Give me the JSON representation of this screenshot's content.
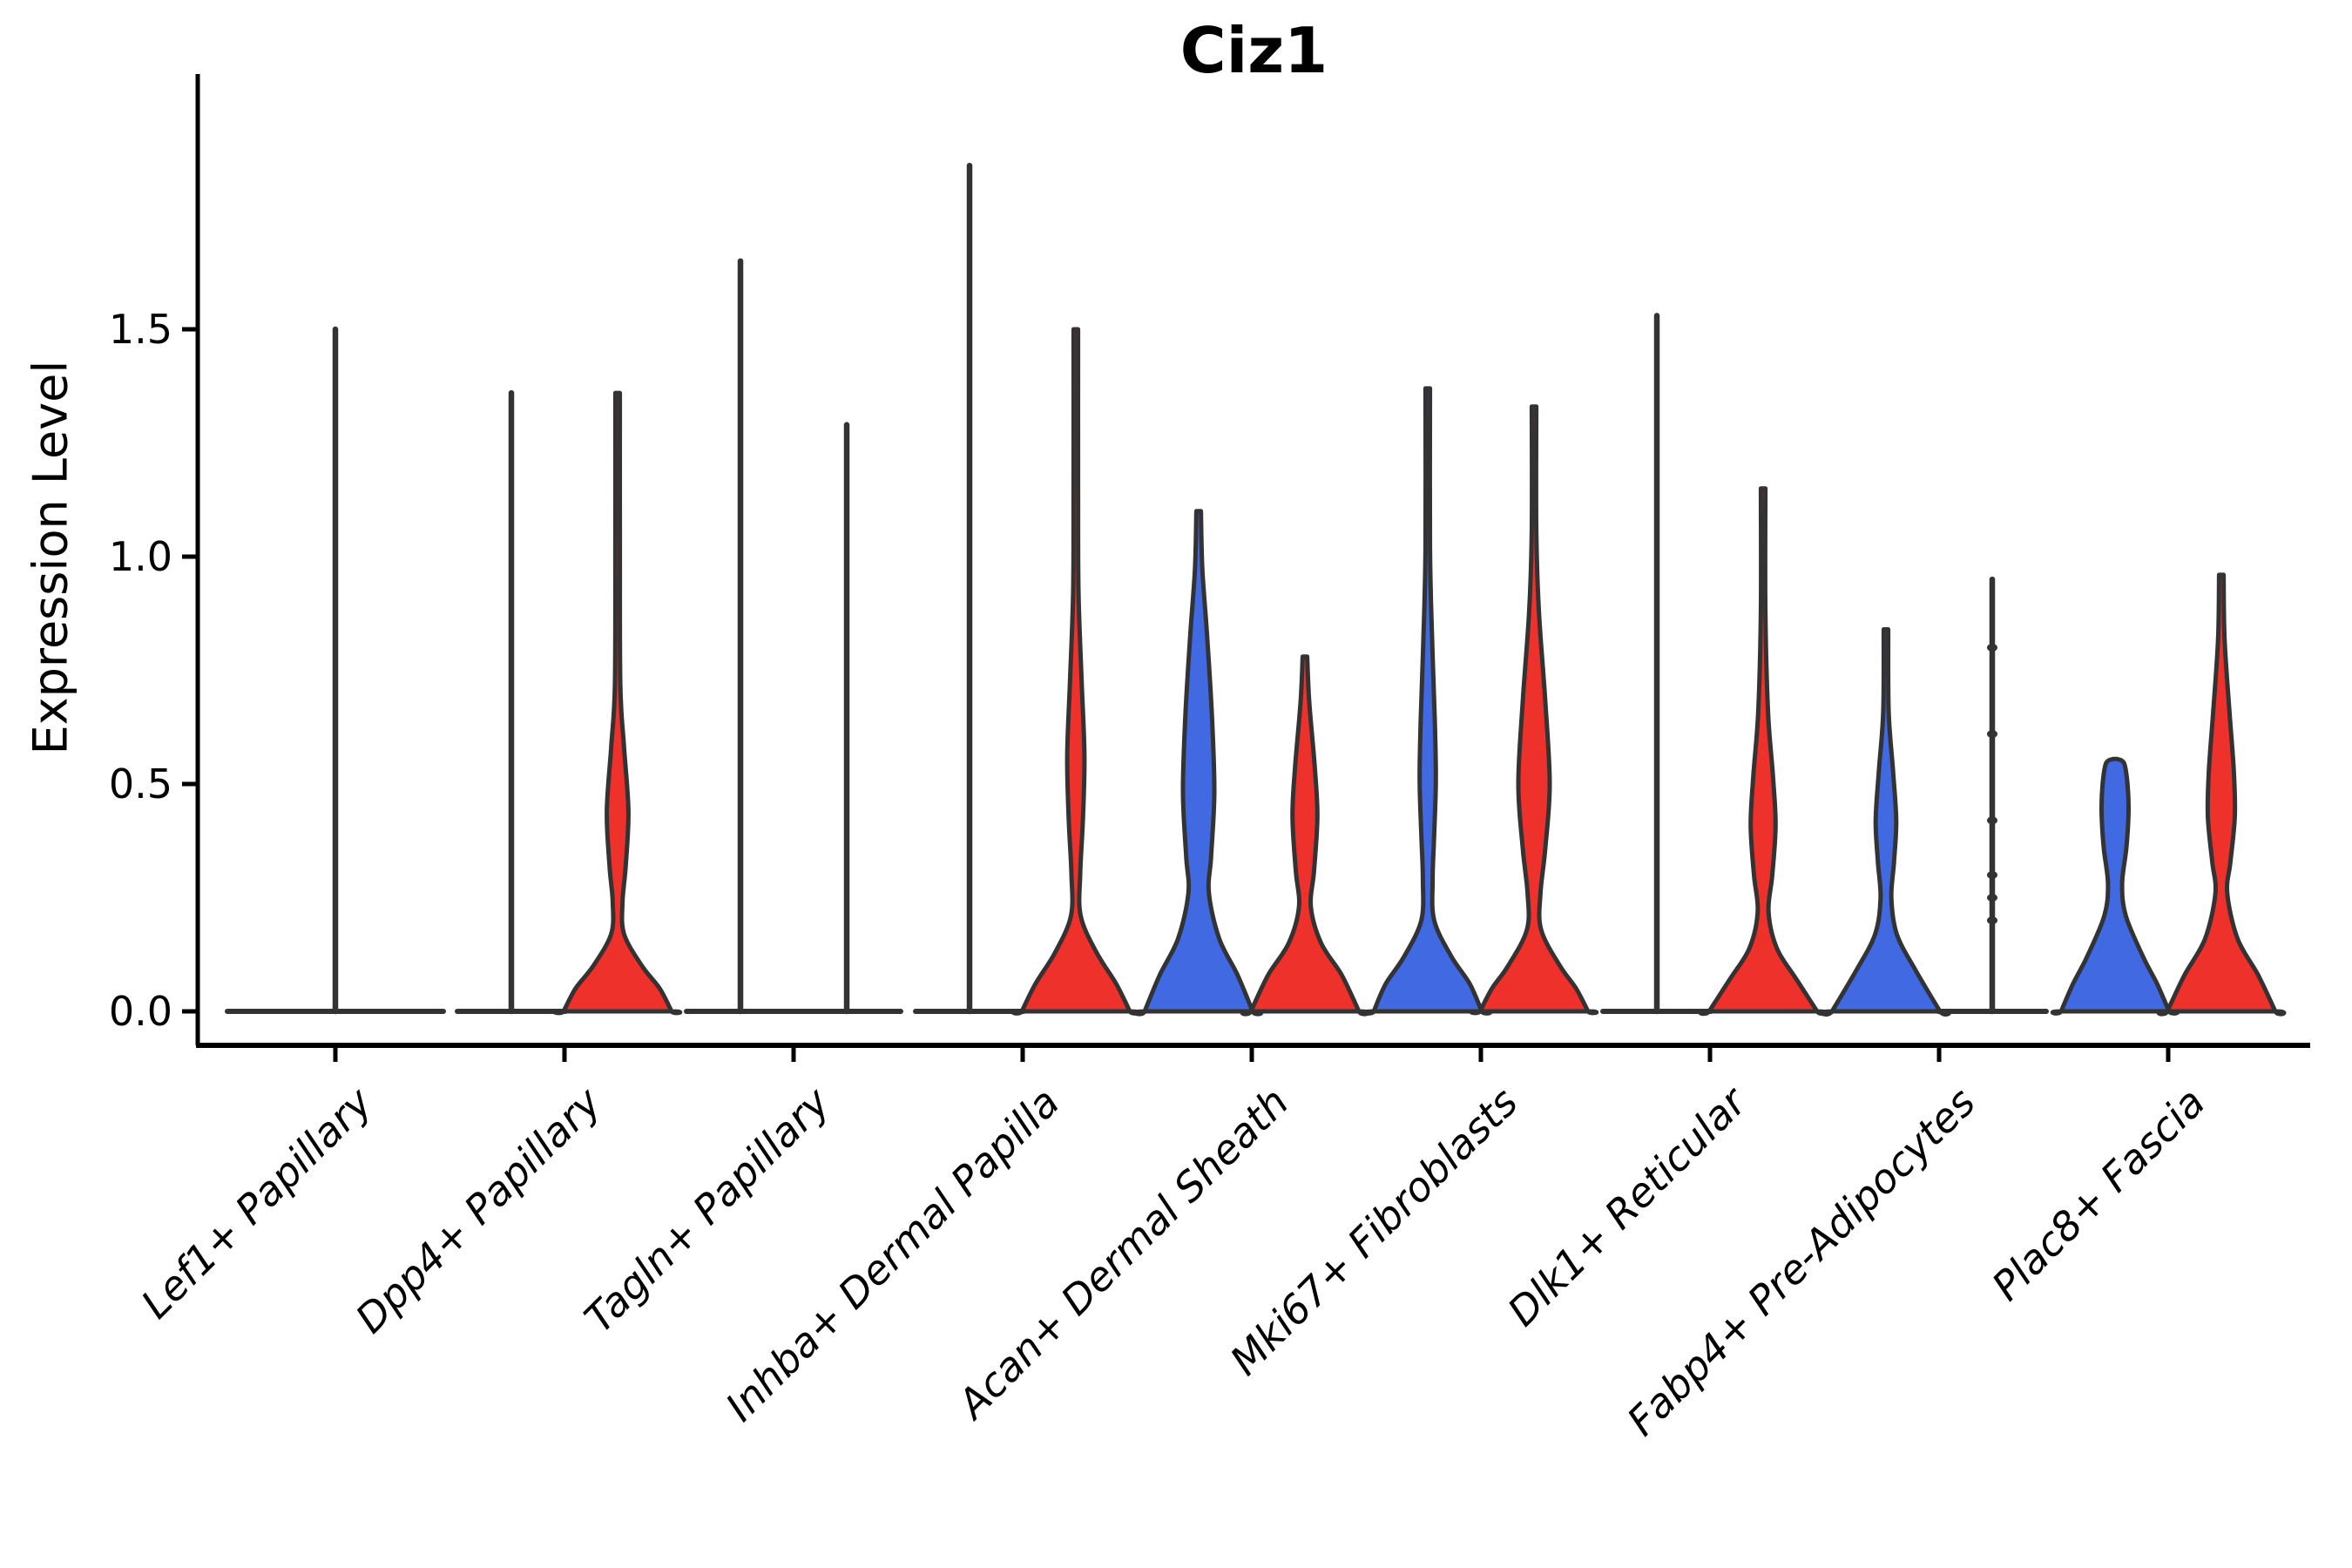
{
  "chart_data": {
    "type": "violin",
    "title": "Ciz1",
    "ylabel": "Expression Level",
    "xlabel": "",
    "y_ticks": [
      "0.0",
      "0.5",
      "1.0",
      "1.5"
    ],
    "y_tick_values": [
      0.0,
      0.5,
      1.0,
      1.5
    ],
    "ylim": [
      -0.08,
      2.06
    ],
    "grid": false,
    "legend_position": "none",
    "x_tick_rotation_deg": 45,
    "split_groups": [
      "blue",
      "red"
    ],
    "style": {
      "blue": "#4169E1",
      "red": "#EE312B",
      "outline": "#333333",
      "axis": "#000000",
      "background": "#FFFFFF"
    },
    "categories": [
      "Lef1+ Papillary",
      "Dpp4+ Papillary",
      "Tagln+ Papillary",
      "Inhba+ Dermal Papilla",
      "Acan+ Dermal Sheath",
      "Mki67+ Fibroblasts",
      "Dlk1+ Reticular",
      "Fabp4+ Pre-Adipocytes",
      "Plac8+ Fascia"
    ],
    "series": [
      {
        "category": "Lef1+ Papillary",
        "violins": [
          {
            "group": "single",
            "render": "line",
            "max": 1.5
          }
        ]
      },
      {
        "category": "Dpp4+ Papillary",
        "violins": [
          {
            "group": "blue",
            "render": "line",
            "max": 1.36
          },
          {
            "group": "red",
            "render": "density",
            "max": 1.36,
            "profile": [
              [
                1.36,
                0.03
              ],
              [
                1.05,
                0.03
              ],
              [
                0.72,
                0.05
              ],
              [
                0.58,
                0.12
              ],
              [
                0.44,
                0.2
              ],
              [
                0.32,
                0.15
              ],
              [
                0.24,
                0.09
              ],
              [
                0.17,
                0.12
              ],
              [
                0.1,
                0.45
              ],
              [
                0.05,
                0.78
              ],
              [
                0.0,
                1.0
              ]
            ]
          }
        ]
      },
      {
        "category": "Tagln+ Papillary",
        "violins": [
          {
            "group": "blue",
            "render": "line",
            "max": 1.65
          },
          {
            "group": "red",
            "render": "line",
            "max": 1.29
          }
        ]
      },
      {
        "category": "Inhba+ Dermal Papilla",
        "violins": [
          {
            "group": "blue",
            "render": "line",
            "max": 1.86
          },
          {
            "group": "red",
            "render": "density",
            "max": 1.5,
            "profile": [
              [
                1.5,
                0.03
              ],
              [
                1.15,
                0.03
              ],
              [
                0.92,
                0.05
              ],
              [
                0.72,
                0.11
              ],
              [
                0.56,
                0.16
              ],
              [
                0.42,
                0.13
              ],
              [
                0.3,
                0.08
              ],
              [
                0.21,
                0.09
              ],
              [
                0.13,
                0.38
              ],
              [
                0.06,
                0.75
              ],
              [
                0.0,
                1.0
              ]
            ]
          }
        ]
      },
      {
        "category": "Acan+ Dermal Sheath",
        "violins": [
          {
            "group": "blue",
            "render": "density",
            "max": 1.1,
            "profile": [
              [
                1.1,
                0.03
              ],
              [
                0.97,
                0.07
              ],
              [
                0.82,
                0.16
              ],
              [
                0.64,
                0.25
              ],
              [
                0.48,
                0.29
              ],
              [
                0.34,
                0.23
              ],
              [
                0.26,
                0.19
              ],
              [
                0.16,
                0.38
              ],
              [
                0.08,
                0.72
              ],
              [
                0.0,
                1.0
              ]
            ]
          },
          {
            "group": "red",
            "render": "density",
            "max": 0.78,
            "profile": [
              [
                0.78,
                0.03
              ],
              [
                0.68,
                0.08
              ],
              [
                0.54,
                0.18
              ],
              [
                0.43,
                0.23
              ],
              [
                0.31,
                0.17
              ],
              [
                0.23,
                0.11
              ],
              [
                0.15,
                0.3
              ],
              [
                0.08,
                0.68
              ],
              [
                0.0,
                1.0
              ]
            ]
          }
        ]
      },
      {
        "category": "Mki67+ Fibroblasts",
        "violins": [
          {
            "group": "blue",
            "render": "density",
            "max": 1.37,
            "profile": [
              [
                1.37,
                0.03
              ],
              [
                1.02,
                0.04
              ],
              [
                0.82,
                0.08
              ],
              [
                0.64,
                0.13
              ],
              [
                0.51,
                0.15
              ],
              [
                0.39,
                0.12
              ],
              [
                0.29,
                0.09
              ],
              [
                0.2,
                0.12
              ],
              [
                0.12,
                0.44
              ],
              [
                0.06,
                0.78
              ],
              [
                0.0,
                1.0
              ]
            ]
          },
          {
            "group": "red",
            "render": "density",
            "max": 1.33,
            "profile": [
              [
                1.33,
                0.03
              ],
              [
                1.06,
                0.04
              ],
              [
                0.88,
                0.09
              ],
              [
                0.68,
                0.21
              ],
              [
                0.5,
                0.29
              ],
              [
                0.36,
                0.21
              ],
              [
                0.26,
                0.12
              ],
              [
                0.18,
                0.13
              ],
              [
                0.1,
                0.48
              ],
              [
                0.05,
                0.78
              ],
              [
                0.0,
                1.0
              ]
            ]
          }
        ]
      },
      {
        "category": "Dlk1+ Reticular",
        "violins": [
          {
            "group": "blue",
            "render": "line",
            "max": 1.53
          },
          {
            "group": "red",
            "render": "density",
            "max": 1.15,
            "profile": [
              [
                1.15,
                0.03
              ],
              [
                0.88,
                0.04
              ],
              [
                0.66,
                0.09
              ],
              [
                0.52,
                0.18
              ],
              [
                0.41,
                0.23
              ],
              [
                0.3,
                0.17
              ],
              [
                0.22,
                0.1
              ],
              [
                0.14,
                0.25
              ],
              [
                0.07,
                0.62
              ],
              [
                0.0,
                1.0
              ]
            ]
          }
        ]
      },
      {
        "category": "Fabp4+ Pre-Adipocytes",
        "violins": [
          {
            "group": "blue",
            "render": "density",
            "max": 0.84,
            "profile": [
              [
                0.84,
                0.03
              ],
              [
                0.66,
                0.05
              ],
              [
                0.53,
                0.13
              ],
              [
                0.42,
                0.19
              ],
              [
                0.33,
                0.15
              ],
              [
                0.25,
                0.1
              ],
              [
                0.17,
                0.2
              ],
              [
                0.09,
                0.55
              ],
              [
                0.0,
                1.0
              ]
            ]
          },
          {
            "group": "red",
            "render": "line",
            "max": 0.95,
            "visible_point_values": [
              0.8,
              0.61,
              0.42,
              0.3,
              0.25,
              0.2
            ]
          }
        ]
      },
      {
        "category": "Plac8+ Fascia",
        "violins": [
          {
            "group": "blue",
            "render": "density",
            "max": 0.55,
            "blunt_top": true,
            "profile": [
              [
                0.555,
                0.04
              ],
              [
                0.545,
                0.17
              ],
              [
                0.5,
                0.23
              ],
              [
                0.44,
                0.25
              ],
              [
                0.36,
                0.21
              ],
              [
                0.28,
                0.13
              ],
              [
                0.21,
                0.2
              ],
              [
                0.12,
                0.52
              ],
              [
                0.06,
                0.78
              ],
              [
                0.0,
                1.0
              ]
            ]
          },
          {
            "group": "red",
            "render": "density",
            "max": 0.96,
            "profile": [
              [
                0.96,
                0.03
              ],
              [
                0.82,
                0.06
              ],
              [
                0.66,
                0.15
              ],
              [
                0.53,
                0.23
              ],
              [
                0.43,
                0.25
              ],
              [
                0.33,
                0.17
              ],
              [
                0.26,
                0.11
              ],
              [
                0.16,
                0.3
              ],
              [
                0.08,
                0.68
              ],
              [
                0.0,
                1.0
              ]
            ]
          }
        ]
      }
    ]
  }
}
